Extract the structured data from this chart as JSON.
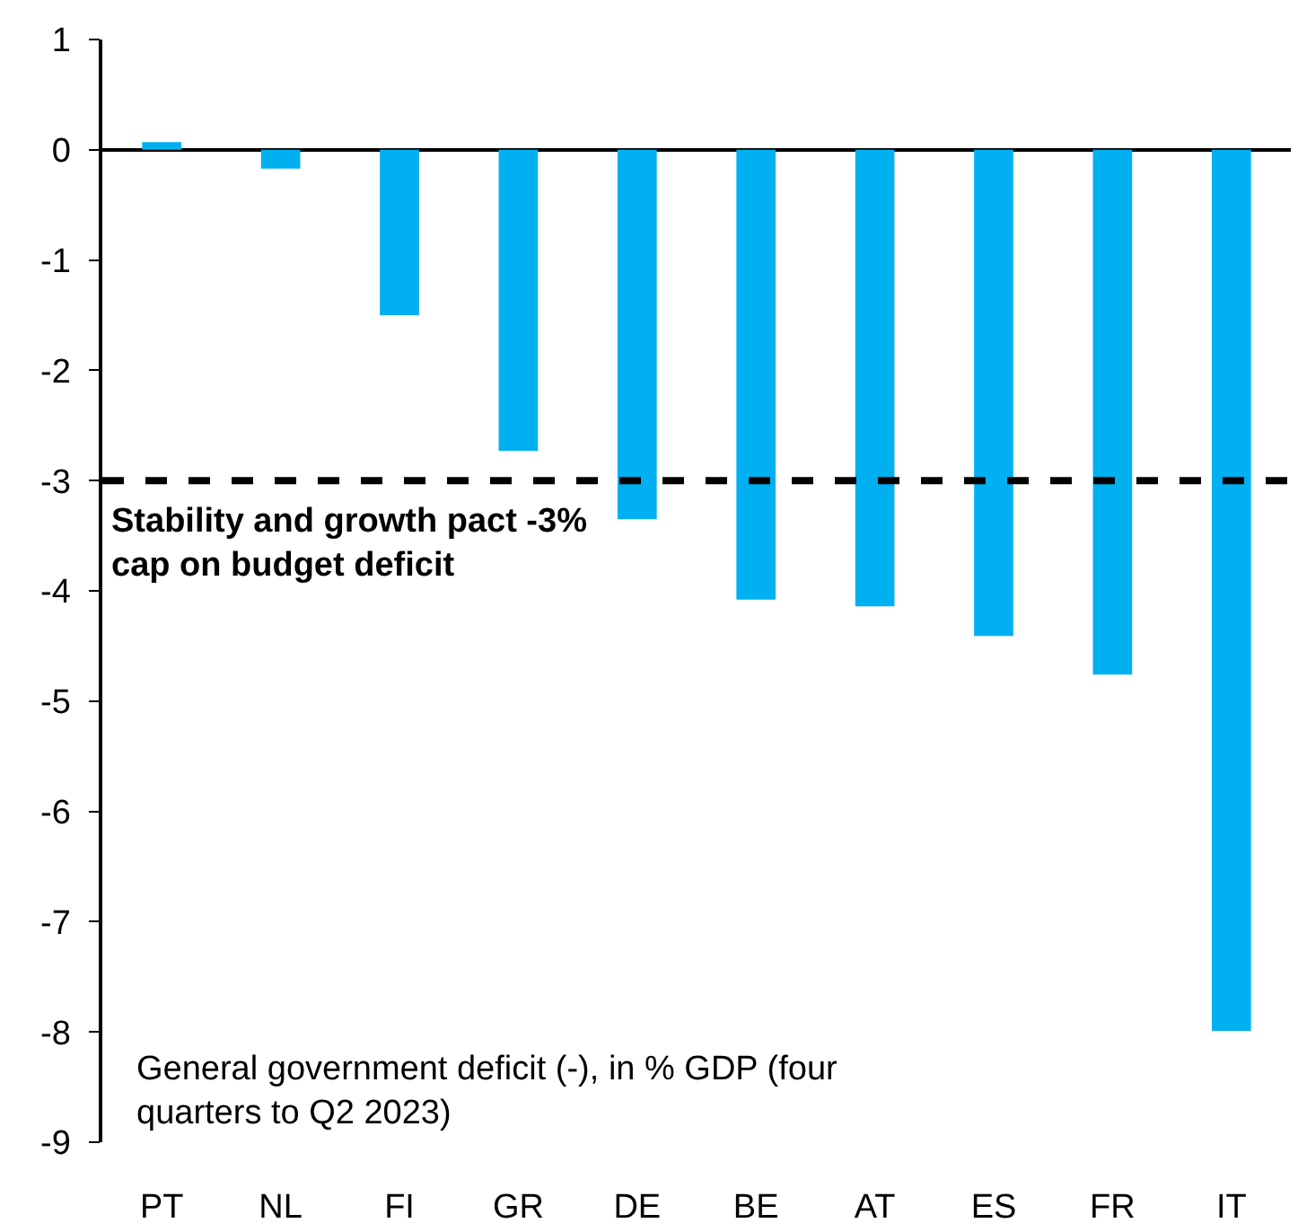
{
  "chart_data": {
    "type": "bar",
    "categories": [
      "PT",
      "NL",
      "FI",
      "GR",
      "DE",
      "BE",
      "AT",
      "ES",
      "FR",
      "IT"
    ],
    "values": [
      0.07,
      -0.17,
      -1.5,
      -2.73,
      -3.35,
      -4.08,
      -4.14,
      -4.41,
      -4.76,
      -7.99
    ],
    "color": "#00b0f0",
    "ylim": [
      -9,
      1
    ],
    "yticks": [
      -9,
      -8,
      -7,
      -6,
      -5,
      -4,
      -3,
      -2,
      -1,
      0,
      1
    ],
    "ref_lines": [
      {
        "axis": "y",
        "value": -3,
        "label": "Stability and growth pact -3%\ncap on budget deficit",
        "color": "#000000",
        "line_style": "dashed"
      }
    ],
    "annotations": [
      "General government deficit (-), in % GDP (four\nquarters to Q2 2023)"
    ]
  }
}
